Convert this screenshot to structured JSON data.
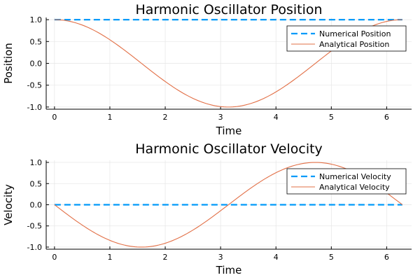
{
  "colors": {
    "numerical": "#009af9",
    "analytical": "#e26f46",
    "grid": "#e6e6e6",
    "axis": "#000000"
  },
  "chart_data": [
    {
      "type": "line",
      "title": "Harmonic Oscillator Position",
      "xlabel": "Time",
      "ylabel": "Position",
      "xlim": [
        -0.15,
        6.45
      ],
      "ylim": [
        -1.05,
        1.05
      ],
      "xticks": [
        0,
        1,
        2,
        3,
        4,
        5,
        6
      ],
      "yticks": [
        -1.0,
        -0.5,
        0.0,
        0.5,
        1.0
      ],
      "ytick_labels": [
        "-1.0",
        "-0.5",
        "0.0",
        "0.5",
        "1.0"
      ],
      "grid": true,
      "legend_position": "top-right",
      "series": [
        {
          "name": "Numerical Position",
          "style": "dashed",
          "function": "constant_one",
          "x_range": [
            0,
            6.283
          ],
          "y": 1.0
        },
        {
          "name": "Analytical Position",
          "style": "solid",
          "function": "cos",
          "x_range": [
            0,
            6.283
          ]
        }
      ]
    },
    {
      "type": "line",
      "title": "Harmonic Oscillator Velocity",
      "xlabel": "Time",
      "ylabel": "Velocity",
      "xlim": [
        -0.15,
        6.45
      ],
      "ylim": [
        -1.05,
        1.05
      ],
      "xticks": [
        0,
        1,
        2,
        3,
        4,
        5,
        6
      ],
      "yticks": [
        -1.0,
        -0.5,
        0.0,
        0.5,
        1.0
      ],
      "ytick_labels": [
        "-1.0",
        "-0.5",
        "0.0",
        "0.5",
        "1.0"
      ],
      "grid": true,
      "legend_position": "top-right",
      "series": [
        {
          "name": "Numerical Velocity",
          "style": "dashed",
          "function": "constant_zero",
          "x_range": [
            0,
            6.283
          ],
          "y": 0.0
        },
        {
          "name": "Analytical Velocity",
          "style": "solid",
          "function": "neg_sin",
          "x_range": [
            0,
            6.283
          ]
        }
      ]
    }
  ]
}
